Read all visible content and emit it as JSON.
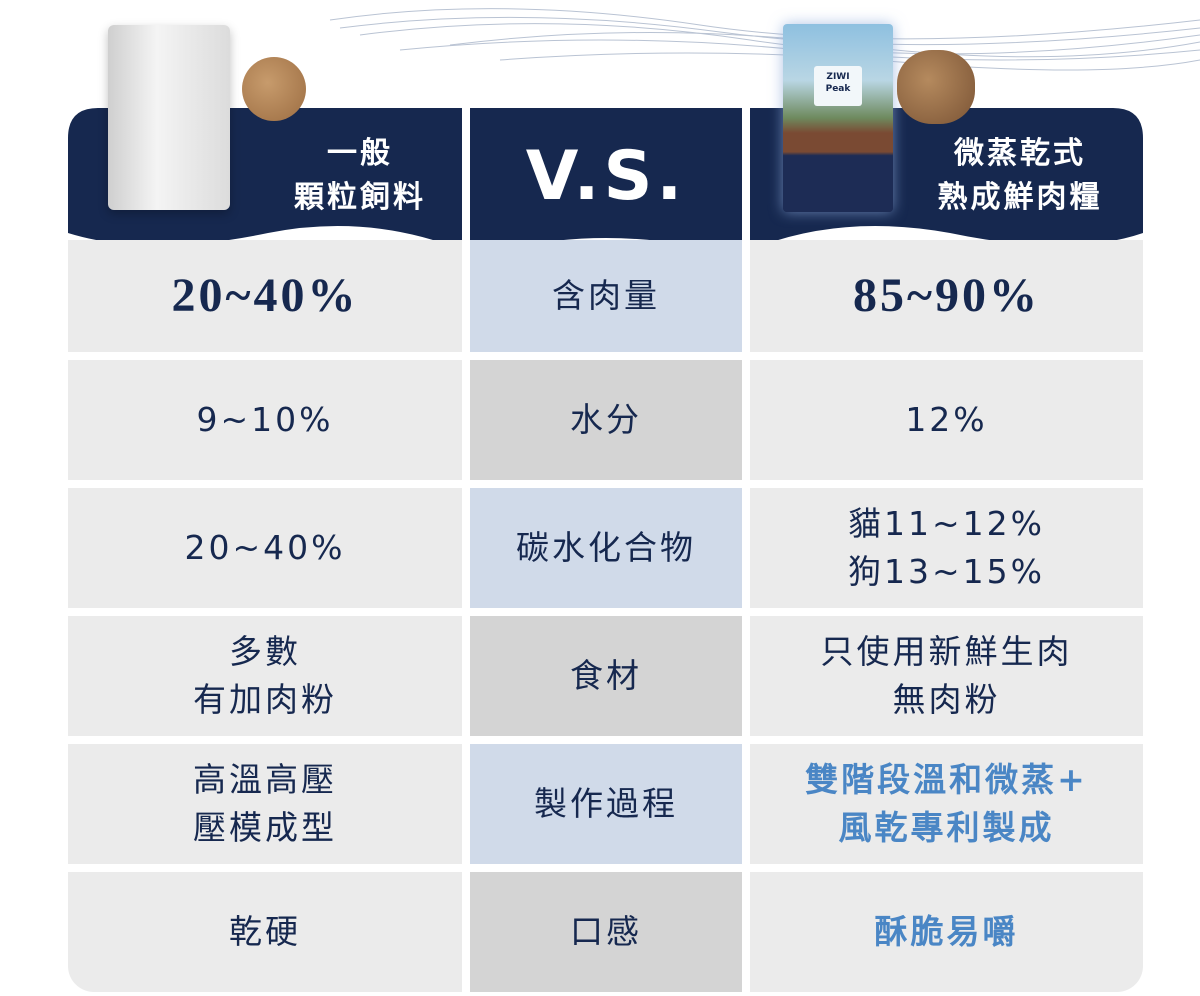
{
  "header": {
    "left_title": [
      "一般",
      "顆粒飼料"
    ],
    "middle_title": "V.S.",
    "right_title": [
      "微蒸乾式",
      "熟成鮮肉糧"
    ],
    "product_logo": "ZIWI Peak"
  },
  "colors": {
    "navy": "#16284f",
    "highlight": "#4a86c5",
    "row_blue": "#d0dae9",
    "row_gray": "#d4d4d4",
    "side": "#ebebeb"
  },
  "rows": [
    {
      "label": "含肉量",
      "left": [
        "20~40%"
      ],
      "right": [
        "85~90%"
      ]
    },
    {
      "label": "水分",
      "left": [
        "9~10%"
      ],
      "right": [
        "12%"
      ]
    },
    {
      "label": "碳水化合物",
      "left": [
        "20~40%"
      ],
      "right": [
        "貓11~12%",
        "狗13~15%"
      ]
    },
    {
      "label": "食材",
      "left": [
        "多數",
        "有加肉粉"
      ],
      "right": [
        "只使用新鮮生肉",
        "無肉粉"
      ]
    },
    {
      "label": "製作過程",
      "left": [
        "高溫高壓",
        "壓模成型"
      ],
      "right": [
        "雙階段溫和微蒸+",
        "風乾專利製成"
      ]
    },
    {
      "label": "口感",
      "left": [
        "乾硬"
      ],
      "right": [
        "酥脆易嚼"
      ]
    }
  ]
}
